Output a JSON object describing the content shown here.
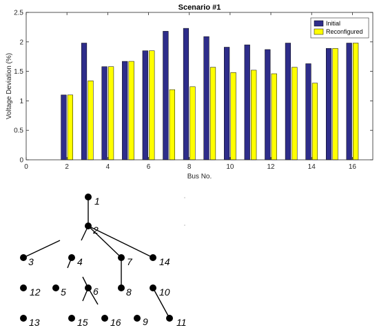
{
  "chart_data": {
    "type": "bar",
    "title": "Scenario #1",
    "xlabel": "Bus No.",
    "ylabel": "Voltage Deviation (%)",
    "xlim": [
      0,
      17
    ],
    "ylim": [
      0,
      2.5
    ],
    "xticks": [
      "0",
      "2",
      "4",
      "6",
      "8",
      "10",
      "12",
      "14",
      "16"
    ],
    "yticks": [
      "0",
      "0.5",
      "1",
      "1.5",
      "2",
      "2.5"
    ],
    "legend_position": "top-right",
    "categories": [
      2,
      3,
      4,
      5,
      6,
      7,
      8,
      9,
      10,
      11,
      12,
      13,
      14,
      15,
      16
    ],
    "series": [
      {
        "name": "Initial",
        "color": "#2e2d8a",
        "values": [
          1.1,
          1.98,
          1.58,
          1.67,
          1.85,
          2.18,
          2.23,
          2.09,
          1.91,
          1.95,
          1.87,
          1.98,
          1.63,
          1.89,
          1.98
        ]
      },
      {
        "name": "Reconfigured",
        "color": "#ffff00",
        "values": [
          1.1,
          1.34,
          1.58,
          1.67,
          1.85,
          1.19,
          1.24,
          1.57,
          1.48,
          1.52,
          1.46,
          1.57,
          1.3,
          1.89,
          1.98
        ]
      }
    ]
  },
  "network": {
    "nodes": [
      {
        "label": "1"
      },
      {
        "label": "2"
      },
      {
        "label": "3"
      },
      {
        "label": "4"
      },
      {
        "label": "7"
      },
      {
        "label": "14"
      },
      {
        "label": "12"
      },
      {
        "label": "5"
      },
      {
        "label": "6"
      },
      {
        "label": "8"
      },
      {
        "label": "10"
      },
      {
        "label": "13"
      },
      {
        "label": "15"
      },
      {
        "label": "16"
      },
      {
        "label": "9"
      },
      {
        "label": "11"
      }
    ]
  }
}
